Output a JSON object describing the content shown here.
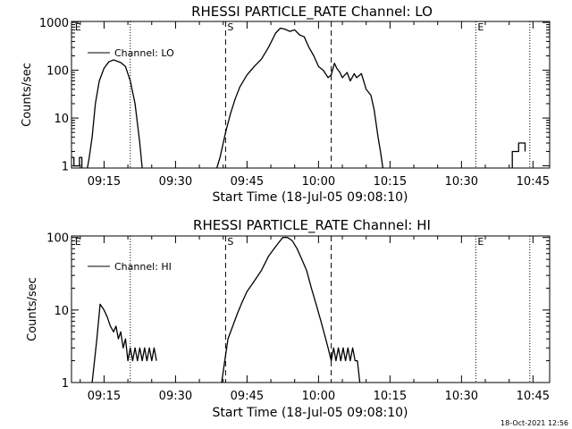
{
  "footer_stamp": "18-Oct-2021 12:56",
  "chart_data": [
    {
      "type": "line",
      "title": "RHESSI PARTICLE_RATE Channel: LO",
      "xlabel": "Start Time (18-Jul-05 09:08:10)",
      "ylabel": "Counts/sec",
      "yscale": "log",
      "xlim": [
        "09:08:10",
        "10:48:30"
      ],
      "ylim": [
        0.9,
        1050
      ],
      "xticks": [
        "09:15",
        "09:30",
        "09:45",
        "10:00",
        "10:15",
        "10:30",
        "10:45"
      ],
      "yticks": [
        "1",
        "10",
        "100",
        "1000"
      ],
      "legend": {
        "label": "Channel: LO",
        "position": "top-left"
      },
      "markers": [
        {
          "label": "E",
          "time": "09:08:30"
        },
        {
          "label": "S",
          "time": "09:40:30"
        },
        {
          "label": "E",
          "time": "10:33:00"
        }
      ],
      "dashed_lines": [
        "09:40:30",
        "10:02:40"
      ],
      "dotted_lines": [
        "09:20:30",
        "10:33:00",
        "10:44:20"
      ],
      "series": [
        {
          "name": "Channel: LO",
          "segments": [
            [
              [
                "09:08:10",
                1.5
              ],
              [
                "09:08:40",
                1.5
              ],
              [
                "09:08:40",
                1.0
              ],
              [
                "09:09:50",
                1.0
              ],
              [
                "09:09:50",
                1.5
              ],
              [
                "09:10:20",
                1.5
              ],
              [
                "09:10:20",
                0.9
              ]
            ],
            [
              [
                "09:11:30",
                0.9
              ],
              [
                "09:11:50",
                1.4
              ],
              [
                "09:12:30",
                4
              ],
              [
                "09:13:10",
                20
              ],
              [
                "09:14:00",
                60
              ],
              [
                "09:15:00",
                110
              ],
              [
                "09:16:00",
                150
              ],
              [
                "09:17:00",
                165
              ],
              [
                "09:18:30",
                145
              ],
              [
                "09:19:30",
                120
              ],
              [
                "09:20:30",
                60
              ],
              [
                "09:21:30",
                20
              ],
              [
                "09:22:30",
                3
              ],
              [
                "09:23:00",
                0.9
              ]
            ],
            [
              [
                "09:38:40",
                0.9
              ],
              [
                "09:39:20",
                1.5
              ],
              [
                "09:40:30",
                5
              ],
              [
                "09:41:30",
                12
              ],
              [
                "09:42:30",
                25
              ],
              [
                "09:43:30",
                45
              ],
              [
                "09:45:00",
                80
              ],
              [
                "09:46:30",
                120
              ],
              [
                "09:48:00",
                170
              ],
              [
                "09:49:30",
                300
              ],
              [
                "09:51:00",
                600
              ],
              [
                "09:52:00",
                760
              ],
              [
                "09:53:00",
                720
              ],
              [
                "09:54:00",
                650
              ],
              [
                "09:55:00",
                700
              ],
              [
                "09:56:00",
                550
              ],
              [
                "09:57:00",
                500
              ],
              [
                "09:58:00",
                300
              ],
              [
                "09:59:00",
                200
              ],
              [
                "10:00:00",
                120
              ],
              [
                "10:01:00",
                100
              ],
              [
                "10:02:00",
                70
              ],
              [
                "10:02:40",
                80
              ],
              [
                "10:03:20",
                140
              ],
              [
                "10:03:50",
                110
              ],
              [
                "10:04:30",
                90
              ],
              [
                "10:05:00",
                70
              ],
              [
                "10:06:00",
                90
              ],
              [
                "10:06:40",
                60
              ],
              [
                "10:07:30",
                85
              ],
              [
                "10:08:00",
                70
              ],
              [
                "10:09:00",
                85
              ],
              [
                "10:10:00",
                40
              ],
              [
                "10:11:00",
                30
              ],
              [
                "10:11:40",
                15
              ],
              [
                "10:12:30",
                4
              ],
              [
                "10:13:00",
                2
              ],
              [
                "10:13:30",
                0.9
              ]
            ],
            [
              [
                "10:40:40",
                0.9
              ],
              [
                "10:40:40",
                2
              ],
              [
                "10:42:00",
                2
              ],
              [
                "10:42:00",
                3
              ],
              [
                "10:43:20",
                3
              ],
              [
                "10:43:20",
                2
              ]
            ]
          ]
        }
      ]
    },
    {
      "type": "line",
      "title": "RHESSI PARTICLE_RATE Channel: HI",
      "xlabel": "Start Time (18-Jul-05 09:08:10)",
      "ylabel": "Counts/sec",
      "yscale": "log",
      "xlim": [
        "09:08:10",
        "10:48:30"
      ],
      "ylim": [
        1,
        105
      ],
      "xticks": [
        "09:15",
        "09:30",
        "09:45",
        "10:00",
        "10:15",
        "10:30",
        "10:45"
      ],
      "yticks": [
        "1",
        "10",
        "100"
      ],
      "legend": {
        "label": "Channel: HI",
        "position": "top-left"
      },
      "markers": [
        {
          "label": "E",
          "time": "09:08:30"
        },
        {
          "label": "S",
          "time": "09:40:30"
        },
        {
          "label": "E",
          "time": "10:33:00"
        }
      ],
      "dashed_lines": [
        "09:40:30",
        "10:02:40"
      ],
      "dotted_lines": [
        "09:20:30",
        "10:33:00",
        "10:44:20"
      ],
      "series": [
        {
          "name": "Channel: HI",
          "segments": [
            [
              [
                "09:12:30",
                1
              ],
              [
                "09:13:30",
                4
              ],
              [
                "09:14:10",
                12
              ],
              [
                "09:15:00",
                10
              ],
              [
                "09:15:40",
                8
              ],
              [
                "09:16:20",
                6
              ],
              [
                "09:17:00",
                5
              ],
              [
                "09:17:30",
                6
              ],
              [
                "09:18:00",
                4
              ],
              [
                "09:18:30",
                5
              ],
              [
                "09:19:00",
                3
              ],
              [
                "09:19:30",
                4
              ],
              [
                "09:20:00",
                2
              ],
              [
                "09:20:30",
                3
              ],
              [
                "09:21:00",
                2
              ],
              [
                "09:21:30",
                3
              ],
              [
                "09:22:00",
                2
              ],
              [
                "09:22:30",
                3
              ],
              [
                "09:23:00",
                2
              ],
              [
                "09:23:30",
                3
              ],
              [
                "09:24:00",
                2
              ],
              [
                "09:24:30",
                3
              ],
              [
                "09:25:00",
                2
              ],
              [
                "09:25:30",
                3
              ],
              [
                "09:26:00",
                2
              ]
            ],
            [
              [
                "09:39:40",
                1
              ],
              [
                "09:40:20",
                2
              ],
              [
                "09:41:00",
                4
              ],
              [
                "09:42:00",
                6
              ],
              [
                "09:43:00",
                9
              ],
              [
                "09:44:00",
                13
              ],
              [
                "09:45:00",
                18
              ],
              [
                "09:46:30",
                25
              ],
              [
                "09:48:00",
                35
              ],
              [
                "09:49:30",
                55
              ],
              [
                "09:51:00",
                75
              ],
              [
                "09:52:30",
                100
              ],
              [
                "09:53:30",
                100
              ],
              [
                "09:54:30",
                90
              ],
              [
                "09:55:30",
                70
              ],
              [
                "09:56:30",
                50
              ],
              [
                "09:57:30",
                35
              ],
              [
                "09:58:30",
                20
              ],
              [
                "09:59:30",
                12
              ],
              [
                "10:00:30",
                7
              ],
              [
                "10:01:30",
                4
              ],
              [
                "10:02:00",
                3
              ],
              [
                "10:02:40",
                2
              ],
              [
                "10:03:10",
                3
              ],
              [
                "10:03:40",
                2
              ],
              [
                "10:04:10",
                3
              ],
              [
                "10:04:40",
                2
              ],
              [
                "10:05:10",
                3
              ],
              [
                "10:05:40",
                2
              ],
              [
                "10:06:10",
                3
              ],
              [
                "10:06:40",
                2
              ],
              [
                "10:07:10",
                3
              ],
              [
                "10:07:40",
                2
              ],
              [
                "10:08:10",
                2
              ],
              [
                "10:08:40",
                1
              ]
            ]
          ]
        }
      ]
    }
  ]
}
